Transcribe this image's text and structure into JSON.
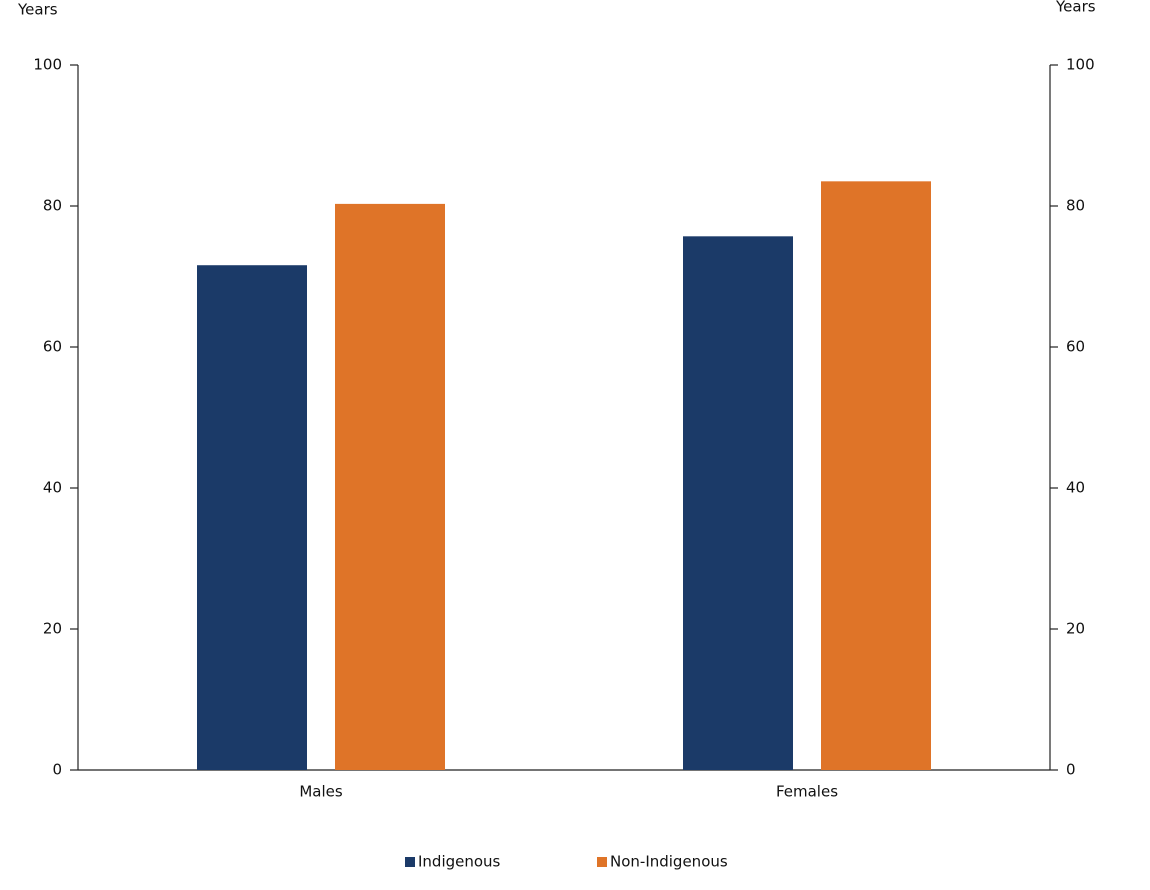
{
  "chart_data": {
    "type": "bar",
    "ylabel": "Years",
    "y2label": "Years",
    "categories": [
      "Males",
      "Females"
    ],
    "series": [
      {
        "name": "Indigenous",
        "color": "#1b3a68",
        "values": [
          71.6,
          75.7
        ]
      },
      {
        "name": "Non-Indigenous",
        "color": "#df7428",
        "values": [
          80.3,
          83.5
        ]
      }
    ],
    "ylim": [
      0,
      100
    ],
    "yticks": [
      0,
      20,
      40,
      60,
      80,
      100
    ],
    "y2lim": [
      0,
      100
    ],
    "y2ticks": [
      0,
      20,
      40,
      60,
      80,
      100
    ],
    "grid": false,
    "legend": "bottom"
  }
}
